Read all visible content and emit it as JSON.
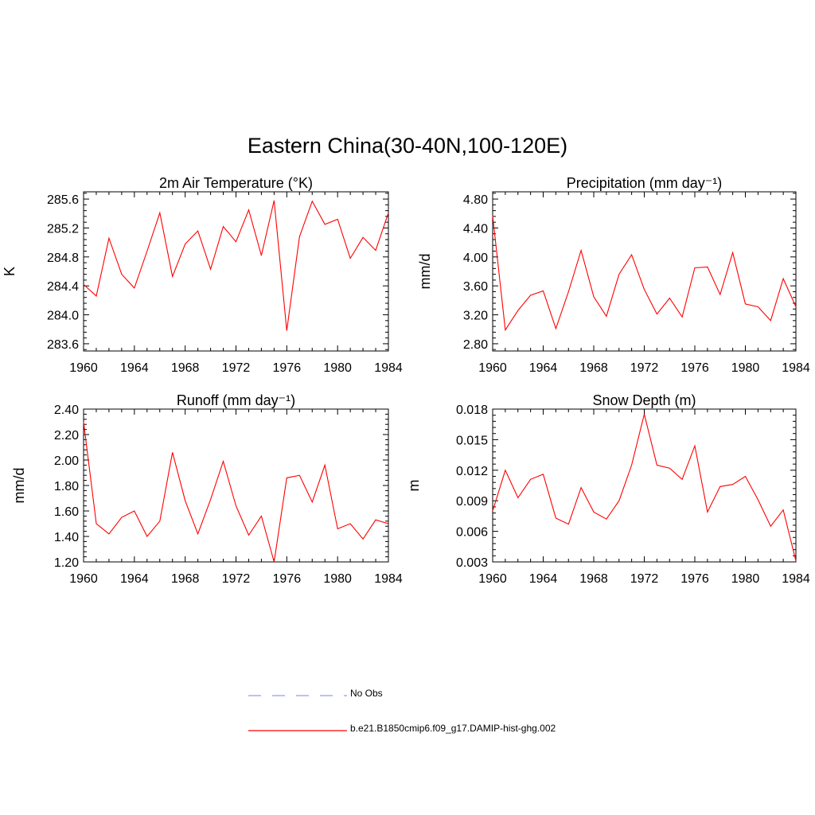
{
  "title": "Eastern China(30-40N,100-120E)",
  "legend": [
    {
      "label": "No Obs",
      "color": "#9999ee",
      "style": "dashed"
    },
    {
      "label": "b.e21.B1850cmip6.f09_g17.DAMIP-hist-ghg.002",
      "color": "#ff0000",
      "style": "solid"
    }
  ],
  "chart_data": [
    {
      "type": "line",
      "title": "2m Air Temperature (°K)",
      "xlabel": "",
      "ylabel": "K",
      "xlim": [
        1960,
        1984
      ],
      "ylim": [
        283.5,
        285.7
      ],
      "xticks": [
        1960,
        1964,
        1968,
        1972,
        1976,
        1980,
        1984
      ],
      "yticks": [
        "283.6",
        "284.0",
        "284.4",
        "284.8",
        "285.2",
        "285.6"
      ],
      "color": "#ff0000",
      "x": [
        1960,
        1961,
        1962,
        1963,
        1964,
        1965,
        1966,
        1967,
        1968,
        1969,
        1970,
        1971,
        1972,
        1973,
        1974,
        1975,
        1976,
        1977,
        1978,
        1979,
        1980,
        1981,
        1982,
        1983,
        1984
      ],
      "values": [
        284.42,
        284.26,
        285.06,
        284.56,
        284.37,
        284.88,
        285.41,
        284.53,
        284.98,
        285.16,
        284.63,
        285.22,
        285.01,
        285.45,
        284.82,
        285.58,
        283.78,
        285.08,
        285.57,
        285.25,
        285.32,
        284.78,
        285.07,
        284.89,
        285.41
      ]
    },
    {
      "type": "line",
      "title": "Precipitation (mm day⁻¹)",
      "xlabel": "",
      "ylabel": "mm/d",
      "xlim": [
        1960,
        1984
      ],
      "ylim": [
        2.7,
        4.9
      ],
      "xticks": [
        1960,
        1964,
        1968,
        1972,
        1976,
        1980,
        1984
      ],
      "yticks": [
        "2.80",
        "3.20",
        "3.60",
        "4.00",
        "4.40",
        "4.80"
      ],
      "color": "#ff0000",
      "x": [
        1960,
        1961,
        1962,
        1963,
        1964,
        1965,
        1966,
        1967,
        1968,
        1969,
        1970,
        1971,
        1972,
        1973,
        1974,
        1975,
        1976,
        1977,
        1978,
        1979,
        1980,
        1981,
        1982,
        1983,
        1984
      ],
      "values": [
        4.57,
        2.99,
        3.26,
        3.47,
        3.53,
        3.01,
        3.52,
        4.09,
        3.45,
        3.18,
        3.76,
        4.03,
        3.55,
        3.21,
        3.43,
        3.17,
        3.85,
        3.86,
        3.48,
        4.06,
        3.35,
        3.31,
        3.12,
        3.7,
        3.31
      ]
    },
    {
      "type": "line",
      "title": "Runoff (mm day⁻¹)",
      "xlabel": "",
      "ylabel": "mm/d",
      "xlim": [
        1960,
        1984
      ],
      "ylim": [
        1.2,
        2.4
      ],
      "xticks": [
        1960,
        1964,
        1968,
        1972,
        1976,
        1980,
        1984
      ],
      "yticks": [
        "1.20",
        "1.40",
        "1.60",
        "1.80",
        "2.00",
        "2.20",
        "2.40"
      ],
      "color": "#ff0000",
      "x": [
        1960,
        1961,
        1962,
        1963,
        1964,
        1965,
        1966,
        1967,
        1968,
        1969,
        1970,
        1971,
        1972,
        1973,
        1974,
        1975,
        1976,
        1977,
        1978,
        1979,
        1980,
        1981,
        1982,
        1983,
        1984
      ],
      "values": [
        2.3,
        1.5,
        1.42,
        1.55,
        1.6,
        1.4,
        1.52,
        2.06,
        1.68,
        1.42,
        1.69,
        1.99,
        1.64,
        1.41,
        1.56,
        1.2,
        1.86,
        1.88,
        1.67,
        1.96,
        1.46,
        1.5,
        1.38,
        1.53,
        1.5
      ]
    },
    {
      "type": "line",
      "title": "Snow Depth (m)",
      "xlabel": "",
      "ylabel": "m",
      "xlim": [
        1960,
        1984
      ],
      "ylim": [
        0.003,
        0.018
      ],
      "xticks": [
        1960,
        1964,
        1968,
        1972,
        1976,
        1980,
        1984
      ],
      "yticks": [
        "0.003",
        "0.006",
        "0.009",
        "0.012",
        "0.015",
        "0.018"
      ],
      "color": "#ff0000",
      "x": [
        1960,
        1961,
        1962,
        1963,
        1964,
        1965,
        1966,
        1967,
        1968,
        1969,
        1970,
        1971,
        1972,
        1973,
        1974,
        1975,
        1976,
        1977,
        1978,
        1979,
        1980,
        1981,
        1982,
        1983,
        1984
      ],
      "values": [
        0.008,
        0.012,
        0.0093,
        0.0111,
        0.0116,
        0.0073,
        0.0067,
        0.0103,
        0.0079,
        0.0072,
        0.009,
        0.0125,
        0.0175,
        0.0125,
        0.0122,
        0.0111,
        0.0144,
        0.0079,
        0.0104,
        0.0106,
        0.0114,
        0.0091,
        0.0065,
        0.0081,
        0.0031
      ]
    }
  ]
}
